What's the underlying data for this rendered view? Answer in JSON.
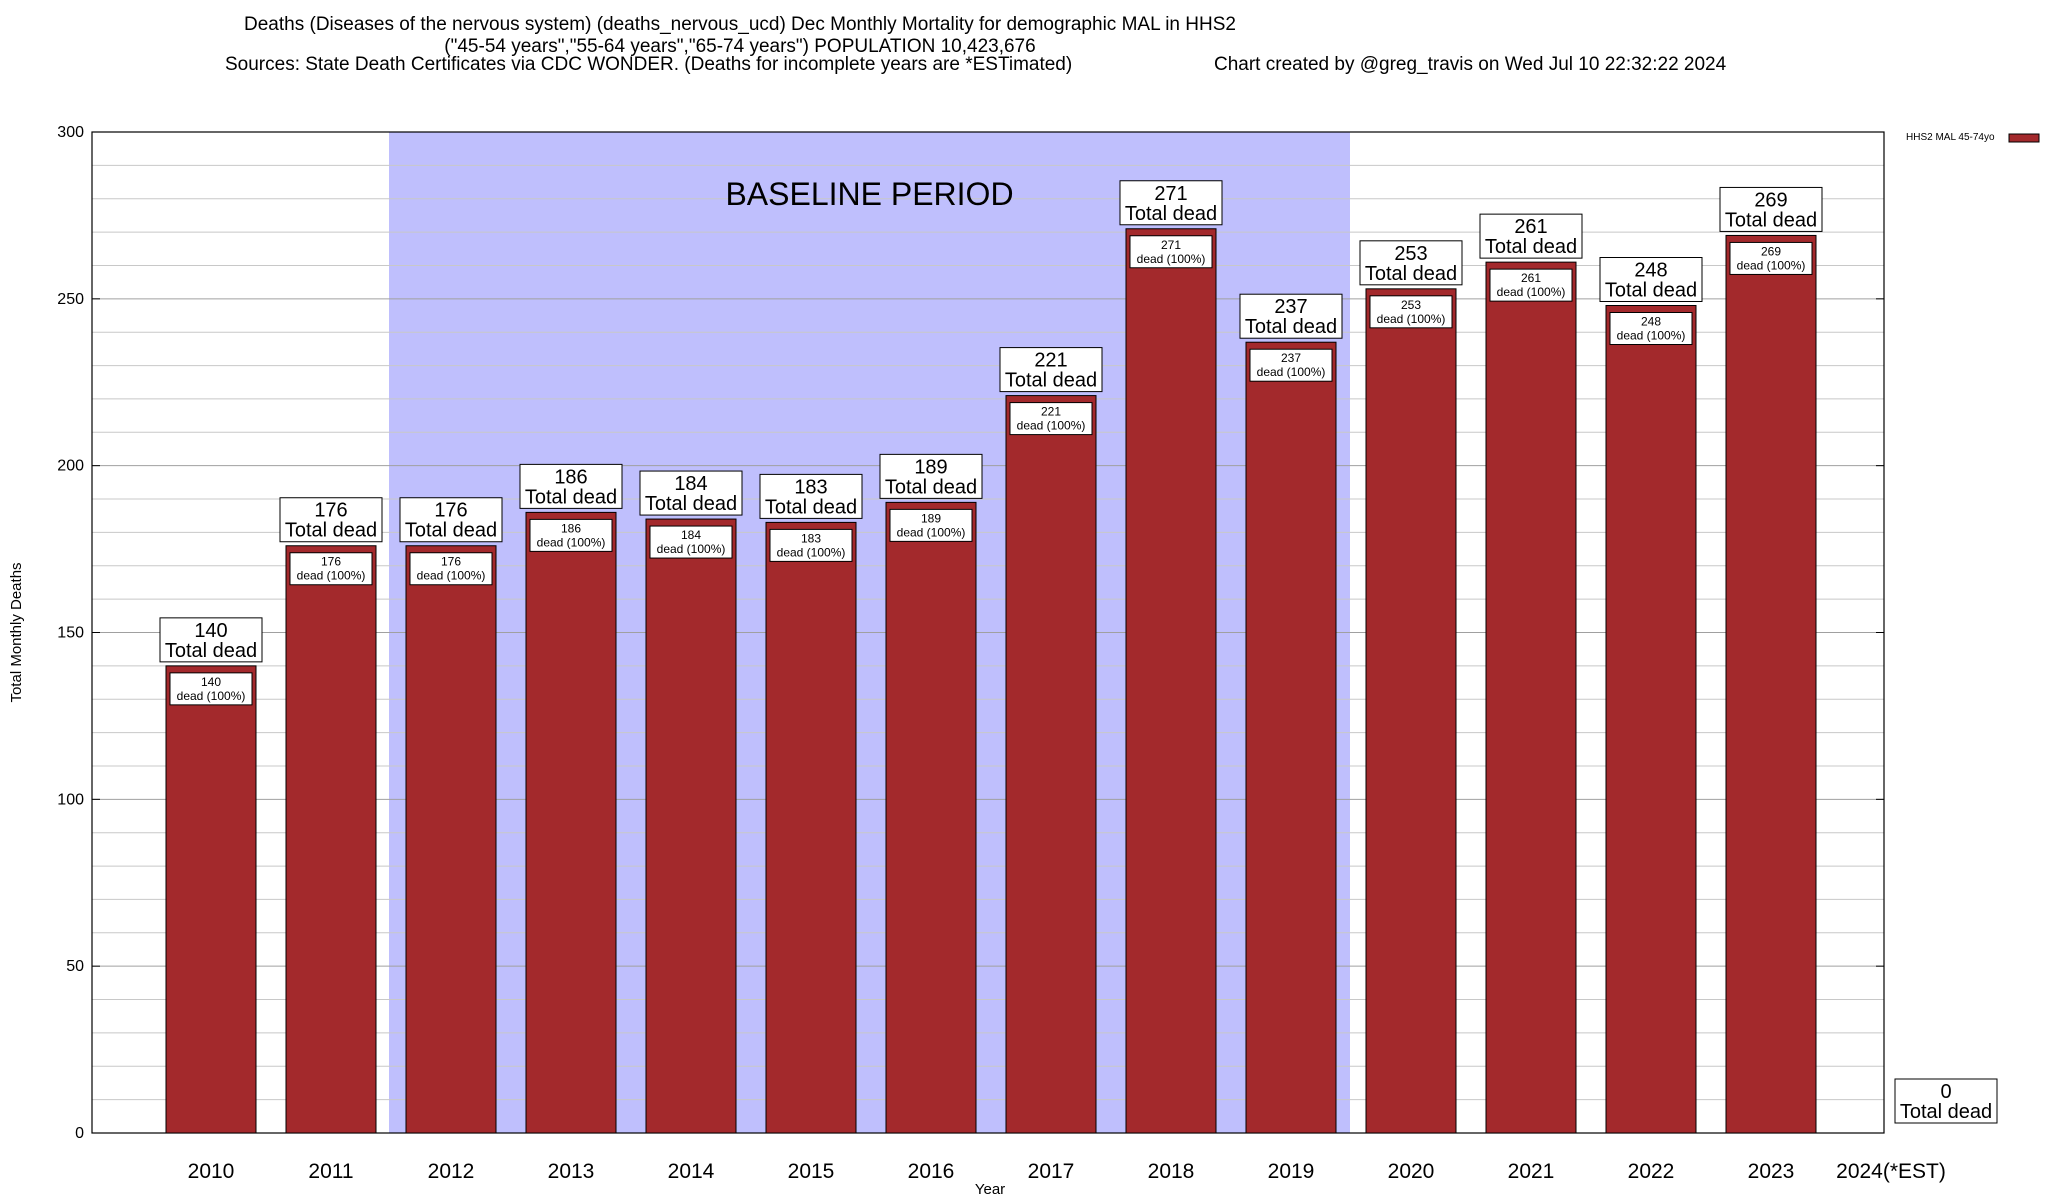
{
  "header": {
    "title_line1": "Deaths (Diseases of the nervous system) (deaths_nervous_ucd) Dec Monthly Mortality for demographic MAL in HHS2",
    "title_line2": "(\"45-54 years\",\"55-64 years\",\"65-74 years\") POPULATION 10,423,676",
    "sources": "Sources: State Death Certificates via CDC WONDER. (Deaths for incomplete years are *ESTimated)",
    "credit": "Chart created by @greg_travis on Wed Jul 10 22:32:22 2024"
  },
  "chart_data": {
    "type": "bar",
    "xlabel": "Year",
    "ylabel": "Total Monthly Deaths",
    "ylim": [
      0,
      300
    ],
    "yticks": [
      0,
      50,
      100,
      150,
      200,
      250,
      300
    ],
    "grid": true,
    "legend": {
      "position": "top-right",
      "label": "HHS2 MAL 45-74yo"
    },
    "colors": {
      "bar": "#a3292c",
      "baseline": "#bfbffd"
    },
    "baseline_region": {
      "label": "BASELINE PERIOD",
      "from": "2012",
      "to": "2019"
    },
    "categories": [
      "2010",
      "2011",
      "2012",
      "2013",
      "2014",
      "2015",
      "2016",
      "2017",
      "2018",
      "2019",
      "2020",
      "2021",
      "2022",
      "2023",
      "2024(*EST)"
    ],
    "series": [
      {
        "name": "HHS2 MAL 45-74yo",
        "values": [
          140,
          176,
          176,
          186,
          184,
          183,
          189,
          221,
          271,
          237,
          253,
          261,
          248,
          269,
          0
        ]
      }
    ],
    "total_label": "Total dead",
    "inner_label": "dead (100%)"
  }
}
